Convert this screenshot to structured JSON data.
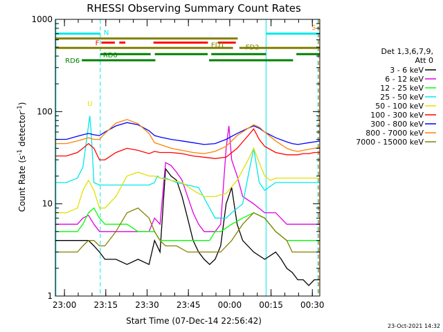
{
  "chart_data": {
    "type": "line",
    "title": "RHESSI Observing Summary Count Rates",
    "xlabel": "Start Time (07-Dec-14 22:56:42)",
    "ylabel_main": "Count Rate (s",
    "ylabel_sup1": "-1",
    "ylabel_mid": " detector",
    "ylabel_sup2": "-1",
    "ylabel_end": ")",
    "x_unit": "minutes after 22:56:42",
    "xlim": [
      0,
      96
    ],
    "ylim": [
      1,
      1000
    ],
    "yscale": "log",
    "x_ticks": [
      {
        "value": 3.3,
        "label": "23:00"
      },
      {
        "value": 18.3,
        "label": "23:15"
      },
      {
        "value": 33.3,
        "label": "23:30"
      },
      {
        "value": 48.3,
        "label": "23:45"
      },
      {
        "value": 63.3,
        "label": "00:00"
      },
      {
        "value": 78.3,
        "label": "00:15"
      },
      {
        "value": 93.3,
        "label": "00:30"
      }
    ],
    "y_ticks": [
      {
        "value": 1,
        "label": "1"
      },
      {
        "value": 10,
        "label": "10"
      },
      {
        "value": 100,
        "label": "100"
      },
      {
        "value": 1000,
        "label": "1000"
      }
    ],
    "legend": {
      "placement": "right",
      "header1": "Det 1,3,6,7,9,",
      "header2": "Att 0"
    },
    "series": [
      {
        "name": "3 - 6 keV",
        "color": "#000000",
        "x": [
          0,
          4,
          8,
          12,
          14,
          16,
          18,
          22,
          26,
          30,
          34,
          36,
          38,
          40,
          42,
          44,
          46,
          48,
          50,
          52,
          54,
          56,
          58,
          60,
          62,
          64,
          66,
          68,
          72,
          76,
          80,
          82,
          84,
          86,
          88,
          90,
          92,
          94,
          96
        ],
        "y": [
          4,
          4,
          4,
          4,
          3.5,
          3,
          2.5,
          2.5,
          2.2,
          2.5,
          2.2,
          4,
          3,
          24,
          20,
          18,
          12,
          7,
          4,
          3,
          2.5,
          2.2,
          2.5,
          3.5,
          10,
          15,
          6,
          4,
          3,
          2.5,
          3,
          2.5,
          2,
          1.8,
          1.5,
          1.5,
          1.3,
          1.5,
          1.5
        ]
      },
      {
        "name": "6 - 12 keV",
        "color": "#e000e0",
        "x": [
          0,
          4,
          8,
          10,
          12,
          14,
          16,
          18,
          22,
          26,
          30,
          34,
          36,
          38,
          40,
          42,
          44,
          46,
          48,
          50,
          52,
          54,
          56,
          58,
          60,
          62,
          63,
          64,
          66,
          68,
          72,
          76,
          80,
          84,
          86,
          88,
          90,
          92,
          94,
          96
        ],
        "y": [
          6,
          6,
          6,
          7,
          7.5,
          6,
          5,
          5,
          5,
          5,
          5,
          5,
          7,
          6,
          28,
          26,
          22,
          18,
          12,
          8,
          6,
          5,
          5,
          5,
          6,
          40,
          70,
          30,
          20,
          12,
          10,
          8,
          8,
          6,
          6,
          6,
          6,
          6,
          6,
          6
        ]
      },
      {
        "name": "12 - 25 keV",
        "color": "#00ff00",
        "x": [
          0,
          4,
          8,
          10,
          12,
          14,
          16,
          18,
          22,
          26,
          30,
          34,
          36,
          38,
          40,
          44,
          48,
          52,
          56,
          58,
          60,
          64,
          68,
          72,
          76,
          80,
          84,
          86,
          88,
          90,
          92,
          94,
          96
        ],
        "y": [
          5,
          5,
          5,
          6,
          8,
          9,
          7,
          6,
          6,
          6,
          5,
          5,
          5,
          4,
          4,
          4,
          4,
          4,
          4,
          5,
          5,
          6,
          7,
          8,
          7,
          5,
          4,
          4,
          4,
          4,
          4,
          4,
          4
        ]
      },
      {
        "name": "25 - 50 keV",
        "color": "#00e8e8",
        "x": [
          0,
          4,
          8,
          10,
          12,
          12.5,
          13,
          14,
          16,
          18,
          22,
          26,
          30,
          34,
          36,
          37,
          38,
          40,
          44,
          48,
          52,
          56,
          58,
          60,
          62,
          64,
          68,
          70,
          72,
          74,
          76,
          80,
          84,
          86,
          88,
          90,
          92,
          94,
          96
        ],
        "y": [
          17,
          17,
          19,
          25,
          70,
          90,
          60,
          17,
          16,
          16,
          16,
          16,
          16,
          16,
          17,
          20,
          19,
          19,
          17,
          16,
          15,
          9,
          7,
          7,
          7,
          8,
          10,
          20,
          40,
          17,
          14,
          17,
          17,
          17,
          17,
          17,
          17,
          17,
          17
        ]
      },
      {
        "name": "50 - 100 keV",
        "color": "#e0e000",
        "x": [
          0,
          4,
          8,
          10,
          12,
          14,
          16,
          18,
          22,
          26,
          30,
          34,
          36,
          38,
          42,
          46,
          50,
          54,
          58,
          62,
          66,
          70,
          72,
          74,
          76,
          78,
          80,
          84,
          86,
          88,
          90,
          92,
          94,
          96
        ],
        "y": [
          8,
          8,
          9,
          14,
          18,
          14,
          9,
          9,
          12,
          20,
          22,
          20,
          20,
          19,
          18,
          17,
          14,
          12,
          12,
          13,
          18,
          30,
          40,
          28,
          20,
          18,
          19,
          19,
          19,
          19,
          19,
          19,
          19,
          19
        ]
      },
      {
        "name": "100 - 300 keV",
        "color": "#ff0000",
        "x": [
          0,
          4,
          8,
          10,
          12,
          14,
          16,
          18,
          22,
          26,
          30,
          34,
          36,
          38,
          42,
          46,
          50,
          54,
          58,
          62,
          66,
          70,
          72,
          74,
          76,
          80,
          84,
          86,
          88,
          90,
          92,
          94,
          96
        ],
        "y": [
          33,
          33,
          36,
          40,
          45,
          40,
          30,
          30,
          36,
          40,
          38,
          35,
          37,
          36,
          36,
          35,
          33,
          32,
          31,
          32,
          40,
          55,
          65,
          50,
          42,
          36,
          34,
          34,
          34,
          35,
          35,
          36,
          36
        ]
      },
      {
        "name": "300 - 800 keV",
        "color": "#0000ff",
        "x": [
          0,
          4,
          8,
          10,
          12,
          14,
          16,
          18,
          22,
          26,
          30,
          34,
          36,
          38,
          42,
          46,
          50,
          54,
          58,
          62,
          66,
          70,
          72,
          74,
          76,
          80,
          84,
          86,
          88,
          90,
          92,
          94,
          96
        ],
        "y": [
          50,
          50,
          54,
          56,
          58,
          56,
          55,
          60,
          70,
          76,
          72,
          62,
          55,
          53,
          50,
          48,
          46,
          44,
          45,
          50,
          58,
          66,
          70,
          66,
          60,
          52,
          47,
          45,
          44,
          45,
          46,
          47,
          48
        ]
      },
      {
        "name": "800 - 7000 keV",
        "color": "#ff8000",
        "x": [
          0,
          4,
          8,
          10,
          12,
          14,
          16,
          18,
          22,
          26,
          30,
          34,
          36,
          38,
          42,
          46,
          50,
          54,
          58,
          62,
          66,
          70,
          72,
          74,
          76,
          80,
          84,
          86,
          88,
          90,
          92,
          94,
          96
        ],
        "y": [
          45,
          45,
          48,
          50,
          52,
          50,
          50,
          58,
          75,
          82,
          74,
          58,
          46,
          44,
          40,
          38,
          36,
          35,
          37,
          42,
          55,
          66,
          72,
          68,
          60,
          48,
          40,
          38,
          37,
          38,
          39,
          40,
          41
        ]
      },
      {
        "name": "7000 - 15000 keV",
        "color": "#808000",
        "x": [
          0,
          4,
          8,
          10,
          12,
          14,
          16,
          18,
          22,
          26,
          30,
          34,
          36,
          38,
          40,
          44,
          48,
          52,
          56,
          58,
          60,
          64,
          68,
          72,
          76,
          80,
          84,
          86,
          88,
          90,
          92,
          94,
          96
        ],
        "y": [
          3,
          3,
          3,
          3.5,
          4,
          4,
          3.5,
          3.5,
          5,
          8,
          9,
          7,
          5,
          4,
          3.5,
          3.5,
          3,
          3,
          3,
          3,
          3,
          4,
          6,
          8,
          7,
          5,
          4,
          3,
          3,
          3,
          3,
          3,
          3
        ]
      }
    ],
    "peak_label": "U",
    "vertical_markers": [
      {
        "x": 0.2,
        "color": "#00e8e8",
        "style": "solid"
      },
      {
        "x": 16.3,
        "color": "#00e8e8",
        "style": "dashed"
      },
      {
        "x": 76.5,
        "color": "#00e8e8",
        "style": "solid"
      },
      {
        "x": 95.3,
        "color": "#00e8e8",
        "style": "dashed"
      },
      {
        "x": 95.6,
        "color": "#ff8000",
        "style": "dashed"
      }
    ],
    "status_bars": [
      {
        "label": "N",
        "label_at": "after",
        "color": "#00e8e8",
        "y": 700,
        "segments": [
          [
            0,
            16.3
          ],
          [
            76.5,
            96
          ]
        ]
      },
      {
        "label": "S",
        "label_at": "end",
        "color": "#ff8000",
        "y": 800,
        "segments": []
      },
      {
        "label": "F",
        "label_at": "before",
        "color": "#ff0000",
        "y": 560,
        "segments": [
          [
            16.7,
            21.6
          ],
          [
            23.2,
            25.4
          ],
          [
            35.6,
            55.4
          ],
          [
            59,
            65.5
          ]
        ]
      },
      {
        "label": "FD1",
        "label_at": "end-of-1",
        "color": "#808000",
        "y": 620,
        "segments": [
          [
            0,
            66.2
          ]
        ]
      },
      {
        "label": "FD2",
        "label_at": "inline",
        "color": "#808000",
        "y": 490,
        "segments": [
          [
            66.8,
            96
          ]
        ]
      },
      {
        "label": "",
        "label_at": "none",
        "color": "#808000",
        "y": 490,
        "segments": [
          [
            0,
            64.5
          ]
        ]
      },
      {
        "label": "RD0",
        "label_at": "after",
        "color": "#008000",
        "y": 420,
        "segments": [
          [
            16.3,
            34.6
          ],
          [
            36.1,
            55.3
          ],
          [
            56.6,
            76.5
          ],
          [
            87.5,
            96
          ]
        ]
      },
      {
        "label": "RD6",
        "label_at": "before",
        "color": "#008000",
        "y": 360,
        "segments": [
          [
            9.6,
            36.3
          ],
          [
            55.8,
            86.3
          ]
        ]
      }
    ]
  },
  "timestamp": "23-Oct-2021 14:32"
}
